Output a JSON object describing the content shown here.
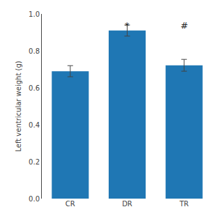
{
  "chart_data": {
    "type": "bar",
    "categories": [
      "CR",
      "DR",
      "TR"
    ],
    "values": [
      0.69,
      0.91,
      0.722
    ],
    "errors": [
      0.03,
      0.03,
      0.032
    ],
    "ylabel": "Left ventricular weight (g)",
    "ylim": [
      0.0,
      1.0
    ],
    "yticks": [
      {
        "value": 0.0,
        "label": "0.0"
      },
      0.2,
      0.4,
      0.6,
      0.8,
      {
        "value": 1.0,
        "label": "1.0"
      }
    ],
    "annotations": [
      {
        "text": "*",
        "category": "DR",
        "y": 0.975
      },
      {
        "text": "#",
        "category": "TR",
        "y": 0.975
      }
    ],
    "grid": false
  }
}
